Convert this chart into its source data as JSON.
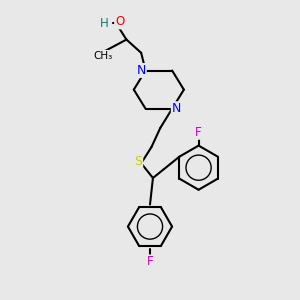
{
  "background_color": "#e8e8e8",
  "bond_color": "#000000",
  "atom_colors": {
    "N": "#0000ff",
    "O": "#ff0000",
    "S": "#cccc00",
    "F": "#cc00cc",
    "H": "#008080",
    "C": "#000000"
  },
  "font_size": 8.5,
  "fig_size": [
    3.0,
    3.0
  ],
  "dpi": 100
}
